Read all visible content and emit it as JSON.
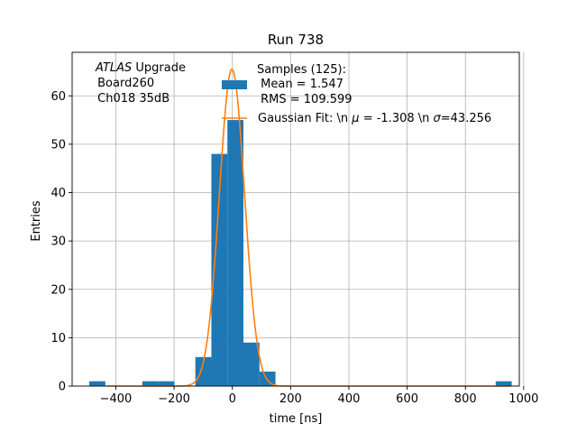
{
  "chart_data": {
    "type": "bar",
    "title": "Run 738",
    "xlabel": "time [ns]",
    "ylabel": "Entries",
    "xlim": [
      -550,
      985
    ],
    "ylim": [
      0,
      69
    ],
    "xticks": [
      -400,
      -200,
      0,
      200,
      400,
      600,
      800,
      1000
    ],
    "yticks": [
      0,
      10,
      20,
      30,
      40,
      50,
      60
    ],
    "grid": true,
    "bins": [
      {
        "x0": -491,
        "x1": -436,
        "value": 1
      },
      {
        "x0": -309,
        "x1": -254,
        "value": 1
      },
      {
        "x0": -254,
        "x1": -199,
        "value": 1
      },
      {
        "x0": -127,
        "x1": -72,
        "value": 6
      },
      {
        "x0": -72,
        "x1": -17,
        "value": 48
      },
      {
        "x0": -17,
        "x1": 38,
        "value": 55
      },
      {
        "x0": 38,
        "x1": 93,
        "value": 9
      },
      {
        "x0": 93,
        "x1": 148,
        "value": 3
      },
      {
        "x0": 904,
        "x1": 959,
        "value": 1
      }
    ],
    "bar_color": "#1f77b4",
    "fit": {
      "type": "gaussian",
      "mu": -1.308,
      "sigma": 43.256,
      "amplitude": 65.5,
      "color": "#ff7f0e"
    },
    "annotation": {
      "line1_italic": "ATLAS",
      "line1_rest": " Upgrade",
      "line2": " Board260",
      "line3": " Ch018 35dB"
    },
    "legend": {
      "placement": "top-center",
      "histogram_label_line1": "Samples (125):",
      "histogram_label_line2": " Mean = 1.547",
      "histogram_label_line3": " RMS = 109.599",
      "fit_label_prefix": "Gaussian Fit: \\n ",
      "fit_label_mu_sym": "μ",
      "fit_label_mid": " = -1.308 \\n ",
      "fit_label_sigma_sym": "σ",
      "fit_label_suffix": "=43.256"
    }
  }
}
